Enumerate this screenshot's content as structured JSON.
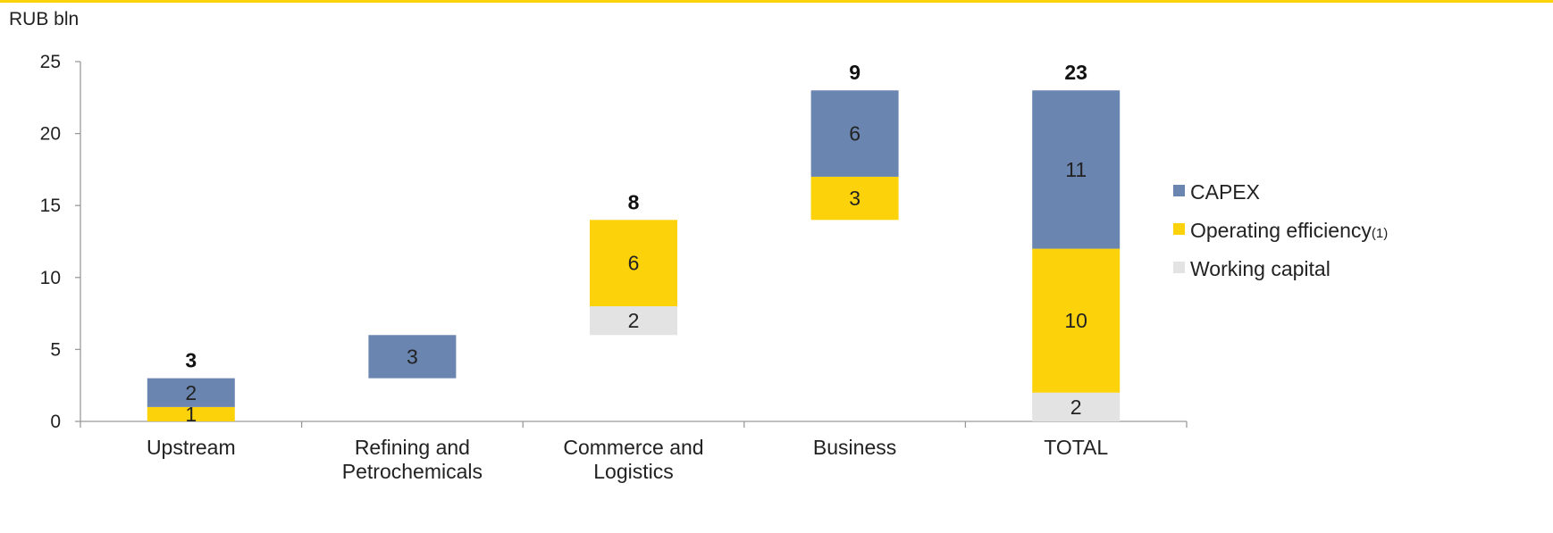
{
  "colors": {
    "capex": "#6a85b0",
    "operating_efficiency": "#fcd20b",
    "working_capital": "#e3e3e3",
    "accent_rule": "#fcd20b",
    "axis": "#9a9a9a"
  },
  "chart_data": {
    "type": "bar",
    "subtype": "stacked-waterfall",
    "unit_label": "RUB bln",
    "ylim": [
      0,
      25
    ],
    "yticks": [
      0,
      5,
      10,
      15,
      20,
      25
    ],
    "grid": false,
    "legend_position": "right",
    "categories": [
      {
        "name": "Upstream",
        "lines": [
          "Upstream"
        ],
        "total": "3"
      },
      {
        "name": "Refining and Petrochemicals",
        "lines": [
          "Refining and",
          "Petrochemicals"
        ],
        "total": ""
      },
      {
        "name": "Commerce and Logistics",
        "lines": [
          "Commerce and",
          "Logistics"
        ],
        "total": "8"
      },
      {
        "name": "Business",
        "lines": [
          "Business"
        ],
        "total": "9"
      },
      {
        "name": "TOTAL",
        "lines": [
          "TOTAL"
        ],
        "total": "23"
      }
    ],
    "bars": [
      {
        "category": "Upstream",
        "segments": [
          {
            "series": "operating_efficiency",
            "from": 0,
            "to": 1,
            "label": "1"
          },
          {
            "series": "capex",
            "from": 1,
            "to": 3,
            "label": "2"
          }
        ]
      },
      {
        "category": "Refining and Petrochemicals",
        "segments": [
          {
            "series": "capex",
            "from": 3,
            "to": 6,
            "label": "3"
          }
        ]
      },
      {
        "category": "Commerce and Logistics",
        "segments": [
          {
            "series": "working_capital",
            "from": 6,
            "to": 8,
            "label": "2"
          },
          {
            "series": "operating_efficiency",
            "from": 8,
            "to": 14,
            "label": "6"
          }
        ]
      },
      {
        "category": "Business",
        "segments": [
          {
            "series": "operating_efficiency",
            "from": 14,
            "to": 17,
            "label": "3"
          },
          {
            "series": "capex",
            "from": 17,
            "to": 23,
            "label": "6"
          }
        ]
      },
      {
        "category": "TOTAL",
        "segments": [
          {
            "series": "working_capital",
            "from": 0,
            "to": 2,
            "label": "2"
          },
          {
            "series": "operating_efficiency",
            "from": 2,
            "to": 12,
            "label": "10"
          },
          {
            "series": "capex",
            "from": 12,
            "to": 23,
            "label": "11"
          }
        ]
      }
    ],
    "legend": [
      {
        "series": "capex",
        "name": "CAPEX",
        "suffix": ""
      },
      {
        "series": "operating_efficiency",
        "name": "Operating efficiency",
        "suffix": "(1)"
      },
      {
        "series": "working_capital",
        "name": "Working capital",
        "suffix": ""
      }
    ]
  }
}
